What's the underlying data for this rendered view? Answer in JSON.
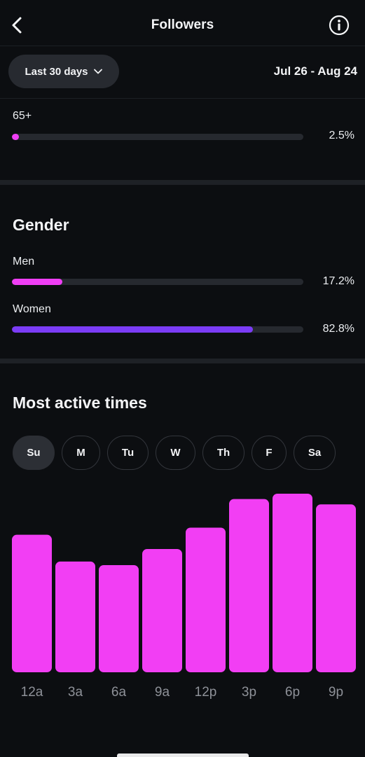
{
  "header": {
    "title": "Followers"
  },
  "range": {
    "selected": "Last 30 days",
    "dates": "Jul 26 - Aug 24"
  },
  "age": {
    "items": [
      {
        "label": "65+",
        "percent": "2.5%",
        "value": 2.5,
        "color": "#f03ef5"
      }
    ]
  },
  "gender": {
    "title": "Gender",
    "items": [
      {
        "label": "Men",
        "percent": "17.2%",
        "value": 17.2,
        "color": "#f03ef5"
      },
      {
        "label": "Women",
        "percent": "82.8%",
        "value": 82.8,
        "color": "#7b3cf6"
      }
    ]
  },
  "active": {
    "title": "Most active times",
    "days": [
      "Su",
      "M",
      "Tu",
      "W",
      "Th",
      "F",
      "Sa"
    ],
    "selected_day": "Su"
  },
  "chart_data": {
    "type": "bar",
    "categories": [
      "12a",
      "3a",
      "6a",
      "9a",
      "12p",
      "3p",
      "6p",
      "9p"
    ],
    "values": [
      77,
      62,
      60,
      69,
      81,
      97,
      100,
      94
    ],
    "ylim": [
      0,
      100
    ],
    "grid": false,
    "color": "#f23ef4"
  }
}
